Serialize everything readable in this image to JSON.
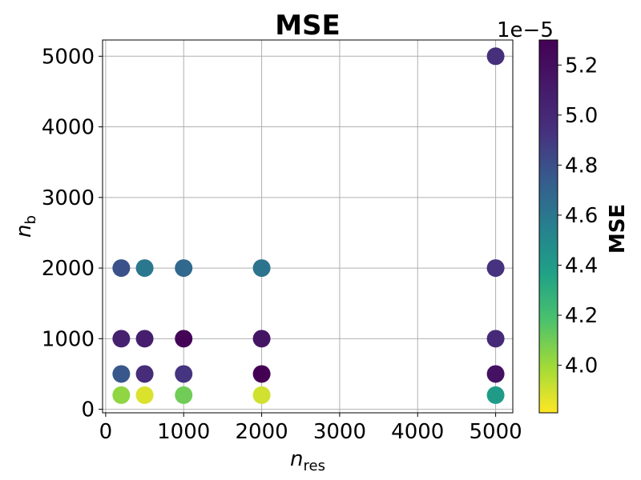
{
  "chart_data": {
    "type": "scatter",
    "title": "MSE",
    "xlabel": {
      "base": "n",
      "sub": "res"
    },
    "ylabel": {
      "base": "n",
      "sub": "b"
    },
    "xlim": [
      -40,
      5220
    ],
    "ylim": [
      -50,
      5230
    ],
    "xticks": [
      0,
      1000,
      2000,
      3000,
      4000,
      5000
    ],
    "xtick_labels": [
      "0",
      "1000",
      "2000",
      "3000",
      "4000",
      "5000"
    ],
    "yticks": [
      0,
      1000,
      2000,
      3000,
      4000,
      5000
    ],
    "ytick_labels": [
      "0",
      "1000",
      "2000",
      "3000",
      "4000",
      "5000"
    ],
    "grid": true,
    "colormap": "viridis_r",
    "colorbar": {
      "label": "MSE",
      "offset_text": "1e−5",
      "range": [
        3.81,
        5.3
      ],
      "ticks": [
        4.0,
        4.2,
        4.4,
        4.6,
        4.8,
        5.0,
        5.2
      ],
      "tick_labels": [
        "4.0",
        "4.2",
        "4.4",
        "4.6",
        "4.8",
        "5.0",
        "5.2"
      ]
    },
    "points": [
      {
        "x": 200,
        "y": 200,
        "mse": 4.03
      },
      {
        "x": 200,
        "y": 500,
        "mse": 4.76
      },
      {
        "x": 200,
        "y": 1000,
        "mse": 5.06
      },
      {
        "x": 200,
        "y": 2000,
        "mse": 4.79
      },
      {
        "x": 500,
        "y": 200,
        "mse": 3.88
      },
      {
        "x": 500,
        "y": 500,
        "mse": 4.97
      },
      {
        "x": 500,
        "y": 1000,
        "mse": 5.07
      },
      {
        "x": 500,
        "y": 2000,
        "mse": 4.6
      },
      {
        "x": 1000,
        "y": 200,
        "mse": 4.1
      },
      {
        "x": 1000,
        "y": 500,
        "mse": 4.92
      },
      {
        "x": 1000,
        "y": 1000,
        "mse": 5.27
      },
      {
        "x": 1000,
        "y": 2000,
        "mse": 4.68
      },
      {
        "x": 2000,
        "y": 200,
        "mse": 3.9
      },
      {
        "x": 2000,
        "y": 500,
        "mse": 5.3
      },
      {
        "x": 2000,
        "y": 1000,
        "mse": 5.15
      },
      {
        "x": 2000,
        "y": 2000,
        "mse": 4.62
      },
      {
        "x": 5000,
        "y": 200,
        "mse": 4.4
      },
      {
        "x": 5000,
        "y": 500,
        "mse": 5.18
      },
      {
        "x": 5000,
        "y": 1000,
        "mse": 4.99
      },
      {
        "x": 5000,
        "y": 2000,
        "mse": 4.93
      },
      {
        "x": 5000,
        "y": 5000,
        "mse": 4.95
      }
    ]
  }
}
